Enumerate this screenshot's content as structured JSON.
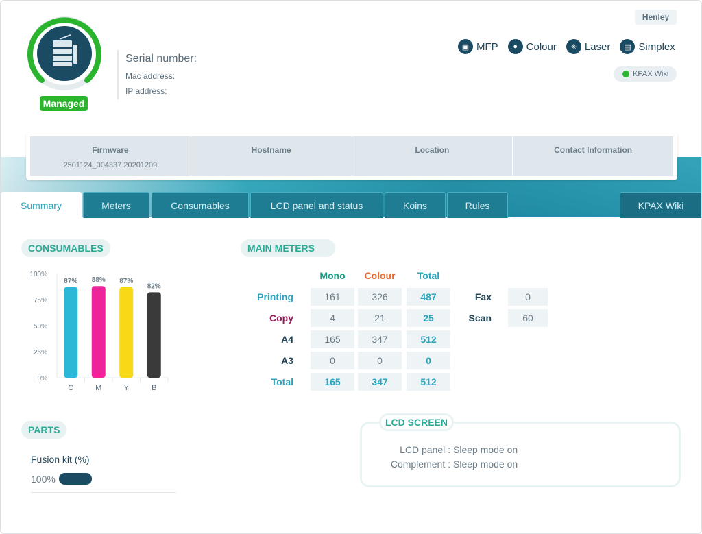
{
  "device": {
    "status_badge": "Managed",
    "serial_label": "Serial number:",
    "mac_label": "Mac address:",
    "ip_label": "IP address:",
    "user": "Henley",
    "kpax_link": "KPAX Wiki",
    "features": [
      {
        "icon": "mfp-icon",
        "label": "MFP"
      },
      {
        "icon": "colour-drop-icon",
        "label": "Colour"
      },
      {
        "icon": "laser-icon",
        "label": "Laser"
      },
      {
        "icon": "simplex-icon",
        "label": "Simplex"
      }
    ]
  },
  "infobar": [
    {
      "header": "Firmware",
      "value": "2501124_004337 20201209"
    },
    {
      "header": "Hostname",
      "value": ""
    },
    {
      "header": "Location",
      "value": ""
    },
    {
      "header": "Contact Information",
      "value": ""
    }
  ],
  "tabs": [
    "Summary",
    "Meters",
    "Consumables",
    "LCD panel and status",
    "Koins",
    "Rules"
  ],
  "tab_right": "KPAX Wiki",
  "sections": {
    "consumables": "CONSUMABLES",
    "main_meters": "MAIN METERS",
    "parts": "PARTS",
    "lcd_screen": "LCD SCREEN"
  },
  "chart_data": {
    "type": "bar",
    "categories": [
      "C",
      "M",
      "Y",
      "B"
    ],
    "values": [
      87,
      88,
      87,
      82
    ],
    "value_labels": [
      "87%",
      "88%",
      "87%",
      "82%"
    ],
    "y_ticks": [
      "100%",
      "75%",
      "50%",
      "25%",
      "0%"
    ],
    "ylim": [
      0,
      100
    ],
    "colors": [
      "#2bb8d6",
      "#f0249a",
      "#f7d918",
      "#3a3a3a"
    ]
  },
  "meters": {
    "columns": [
      "Mono",
      "Colour",
      "Total"
    ],
    "column_colors": [
      "#1b9e86",
      "#ef6a2e",
      "#2ba5be"
    ],
    "rows": [
      {
        "label": "Printing",
        "color": "#2ba5be",
        "values": [
          "161",
          "326",
          "487"
        ]
      },
      {
        "label": "Copy",
        "color": "#9b1b5a",
        "values": [
          "4",
          "21",
          "25"
        ]
      },
      {
        "label": "A4",
        "color": "#24485a",
        "values": [
          "165",
          "347",
          "512"
        ]
      },
      {
        "label": "A3",
        "color": "#24485a",
        "values": [
          "0",
          "0",
          "0"
        ]
      },
      {
        "label": "Total",
        "color": "#2ba5be",
        "values": [
          "165",
          "347",
          "512"
        ]
      }
    ],
    "side": [
      {
        "label": "Fax",
        "value": "0"
      },
      {
        "label": "Scan",
        "value": "60"
      }
    ]
  },
  "parts": {
    "fusion_label": "Fusion kit (%)",
    "fusion_value_label": "100%",
    "fusion_value": 100
  },
  "lcd": {
    "rows": [
      {
        "key": "LCD panel :",
        "value": "Sleep mode on"
      },
      {
        "key": "Complement :",
        "value": "Sleep mode on"
      }
    ]
  }
}
